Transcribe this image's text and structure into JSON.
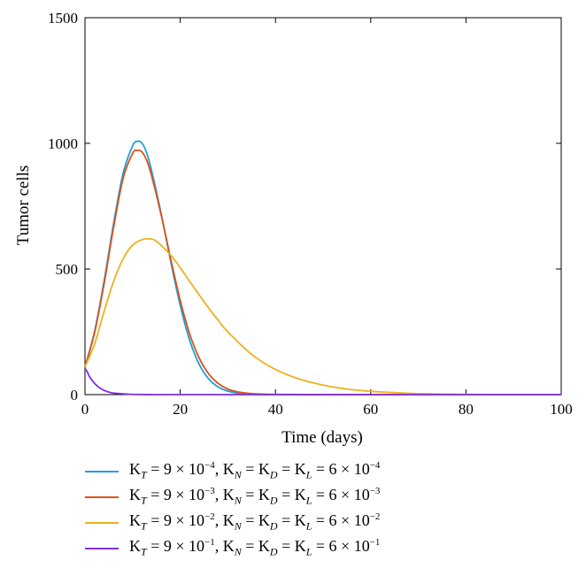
{
  "chart_data": {
    "type": "line",
    "xlabel": "Time (days)",
    "ylabel": "Tumor cells",
    "xlim": [
      0,
      100
    ],
    "ylim": [
      0,
      1500
    ],
    "xticks": [
      "0",
      "20",
      "40",
      "60",
      "80",
      "100"
    ],
    "yticks": [
      "0",
      "500",
      "1000",
      "1500"
    ],
    "grid": false,
    "legend_position": "below",
    "series": [
      {
        "name": "K_T = 9 × 10^−4, K_N = K_D = K_L = 6 × 10^−4",
        "label": {
          "kt_exp": "−4",
          "k_exp": "−4"
        },
        "color": "#1f9fe0",
        "x": [
          0,
          2,
          4,
          6,
          8,
          10,
          11,
          12,
          13,
          14,
          16,
          18,
          20,
          22,
          24,
          26,
          28,
          30,
          32,
          35,
          40,
          50,
          60,
          80,
          100
        ],
        "y": [
          110,
          250,
          450,
          680,
          880,
          990,
          1008,
          1000,
          960,
          890,
          720,
          530,
          355,
          215,
          120,
          62,
          30,
          14,
          6,
          2,
          0,
          0,
          0,
          0,
          0
        ]
      },
      {
        "name": "K_T = 9 × 10^−3, K_N = K_D = K_L = 6 × 10^−3",
        "label": {
          "kt_exp": "−3",
          "k_exp": "−3"
        },
        "color": "#d95319",
        "x": [
          0,
          2,
          4,
          6,
          8,
          10,
          11,
          12,
          13,
          14,
          16,
          18,
          20,
          22,
          24,
          26,
          28,
          30,
          32,
          35,
          40,
          50,
          60,
          80,
          100
        ],
        "y": [
          110,
          245,
          440,
          665,
          860,
          960,
          972,
          965,
          930,
          870,
          715,
          540,
          375,
          240,
          145,
          82,
          44,
          22,
          11,
          4,
          1,
          0,
          0,
          0,
          0
        ]
      },
      {
        "name": "K_T = 9 × 10^−2, K_N = K_D = K_L = 6 × 10^−2",
        "label": {
          "kt_exp": "−2",
          "k_exp": "−2"
        },
        "color": "#edb120",
        "x": [
          0,
          2,
          4,
          6,
          8,
          10,
          12,
          13.5,
          15,
          18,
          20,
          22,
          25,
          28,
          30,
          35,
          40,
          45,
          50,
          55,
          60,
          65,
          70,
          80,
          90,
          100
        ],
        "y": [
          110,
          200,
          330,
          450,
          540,
          595,
          617,
          620,
          610,
          555,
          505,
          450,
          370,
          295,
          250,
          160,
          100,
          62,
          38,
          22,
          13,
          8,
          4,
          1,
          0,
          0
        ]
      },
      {
        "name": "K_T = 9 × 10^−1, K_N = K_D = K_L = 6 × 10^−1",
        "label": {
          "kt_exp": "−1",
          "k_exp": "−1"
        },
        "color": "#7e2fde",
        "x": [
          0,
          0.5,
          1,
          2,
          3,
          4,
          5,
          6,
          8,
          10,
          15,
          20,
          40,
          60,
          80,
          100
        ],
        "y": [
          105,
          90,
          70,
          45,
          28,
          17,
          10,
          6,
          3,
          1,
          0,
          0,
          0,
          0,
          0,
          0
        ]
      }
    ]
  }
}
